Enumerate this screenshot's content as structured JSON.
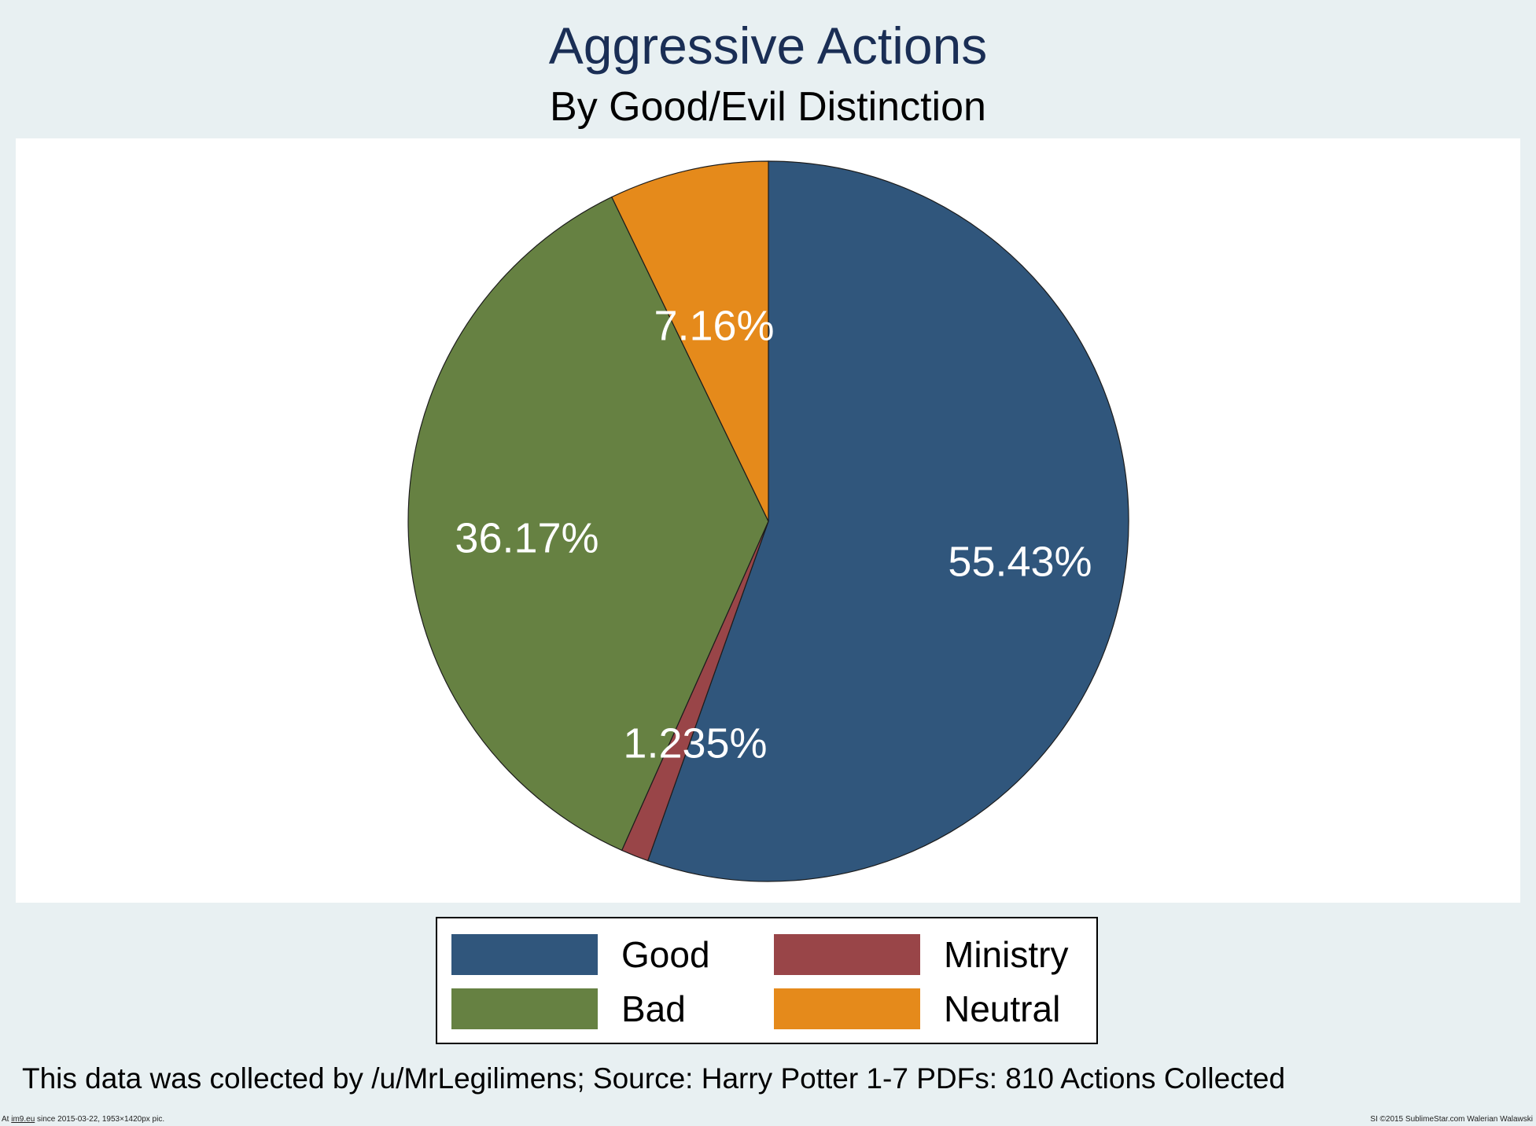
{
  "chart_data": {
    "type": "pie",
    "title": "Aggressive Actions",
    "subtitle": "By Good/Evil Distinction",
    "slices": [
      {
        "name": "Good",
        "value": 55.43,
        "label": "55.43%",
        "color": "#30567c"
      },
      {
        "name": "Ministry",
        "value": 1.235,
        "label": "1.235%",
        "color": "#994548"
      },
      {
        "name": "Bad",
        "value": 36.17,
        "label": "36.17%",
        "color": "#668142"
      },
      {
        "name": "Neutral",
        "value": 7.16,
        "label": "7.16%",
        "color": "#e58a1b"
      }
    ],
    "start_angle": "12 o'clock",
    "direction": "clockwise",
    "legend": {
      "placement": "bottom",
      "entries": [
        {
          "label": "Good",
          "color": "#30567c"
        },
        {
          "label": "Ministry",
          "color": "#994548"
        },
        {
          "label": "Bad",
          "color": "#668142"
        },
        {
          "label": "Neutral",
          "color": "#e58a1b"
        }
      ]
    },
    "note": "This data was collected by /u/MrLegilimens; Source: Harry Potter 1-7 PDFs: 810 Actions Collected"
  },
  "footer": {
    "left_prefix": "At ",
    "left_link": "im9.eu",
    "left_suffix": " since 2015-03-22, 1953×1420px pic.",
    "right": "SI ©2015 SublimeStar.com Walerian Walawski"
  }
}
